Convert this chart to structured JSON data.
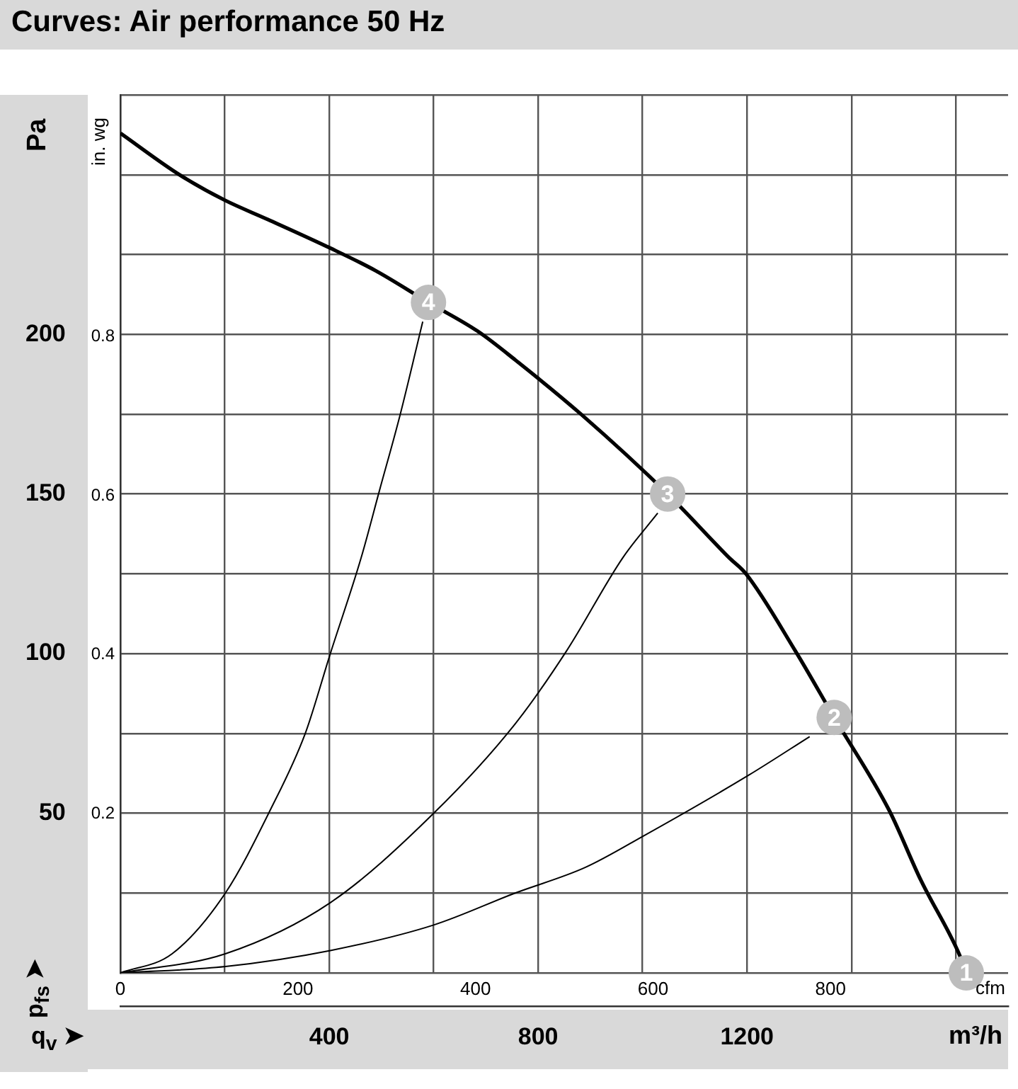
{
  "chart_data": {
    "type": "line",
    "title": "Curves: Air performance 50 Hz",
    "xlabel": "m³/h",
    "x2label": "cfm",
    "ylabel": "Pa",
    "y2label": "in. wg",
    "xlim": [
      0,
      1700
    ],
    "xticks": [
      {
        "value": 0,
        "label": null
      },
      {
        "value": 200,
        "label": null
      },
      400,
      {
        "value": 600,
        "label": null
      },
      800,
      {
        "value": 1000,
        "label": null
      },
      1200,
      {
        "value": 1400,
        "label": null
      },
      {
        "value": 1600,
        "label": null
      }
    ],
    "x2lim": [
      0,
      1000
    ],
    "x2ticks": [
      0,
      200,
      400,
      600,
      800
    ],
    "ylim": [
      0,
      275
    ],
    "yticks": [
      {
        "value": 0,
        "label": null
      },
      {
        "value": 25,
        "label": null
      },
      50,
      {
        "value": 75,
        "label": null
      },
      100,
      {
        "value": 125,
        "label": null
      },
      150,
      {
        "value": 175,
        "label": null
      },
      200,
      {
        "value": 225,
        "label": null
      },
      {
        "value": 250,
        "label": null
      },
      {
        "value": 275,
        "label": null
      }
    ],
    "y2lim": [
      0,
      1.104
    ],
    "y2ticks": [
      0.2,
      0.4,
      0.6,
      0.8
    ],
    "grid": true,
    "legend": false,
    "marker": "none",
    "line_style": "solid",
    "series": [
      {
        "color": "#000000",
        "x": [
          0,
          113,
          200,
          282,
          402,
          488,
          590,
          684,
          756,
          882,
          1048,
          1166,
          1198,
          1292,
          1367,
          1472,
          1533,
          1606,
          1620
        ],
        "values": [
          263,
          250,
          242,
          236,
          227,
          220,
          210,
          201,
          192,
          175,
          150,
          130,
          125,
          101,
          80,
          51,
          29,
          6,
          0
        ]
      },
      {
        "color": "#000000",
        "x": [
          0,
          99,
          201,
          287,
          354,
          402,
          461,
          496,
          536,
          579
        ],
        "values": [
          0,
          6,
          25,
          51,
          75,
          100,
          130,
          151,
          175,
          204
        ]
      },
      {
        "color": "#000000",
        "x": [
          0,
          201,
          402,
          600,
          756,
          855,
          962,
          1029
        ],
        "values": [
          0,
          6,
          22,
          50,
          78,
          101,
          130,
          144
        ]
      },
      {
        "color": "#000000",
        "x": [
          0,
          201,
          402,
          600,
          756,
          890,
          1003,
          1204,
          1320
        ],
        "values": [
          0,
          2,
          7,
          15,
          25,
          33,
          43,
          62,
          74
        ]
      }
    ],
    "annotations": [
      {
        "text": "1",
        "x": 1620,
        "y": 0
      },
      {
        "text": "2",
        "x": 1367,
        "y": 80
      },
      {
        "text": "3",
        "x": 1048,
        "y": 150
      },
      {
        "text": "4",
        "x": 590,
        "y": 210
      },
      "p$_{fs}$ ➤",
      "q$_{v}$ ➤"
    ]
  }
}
